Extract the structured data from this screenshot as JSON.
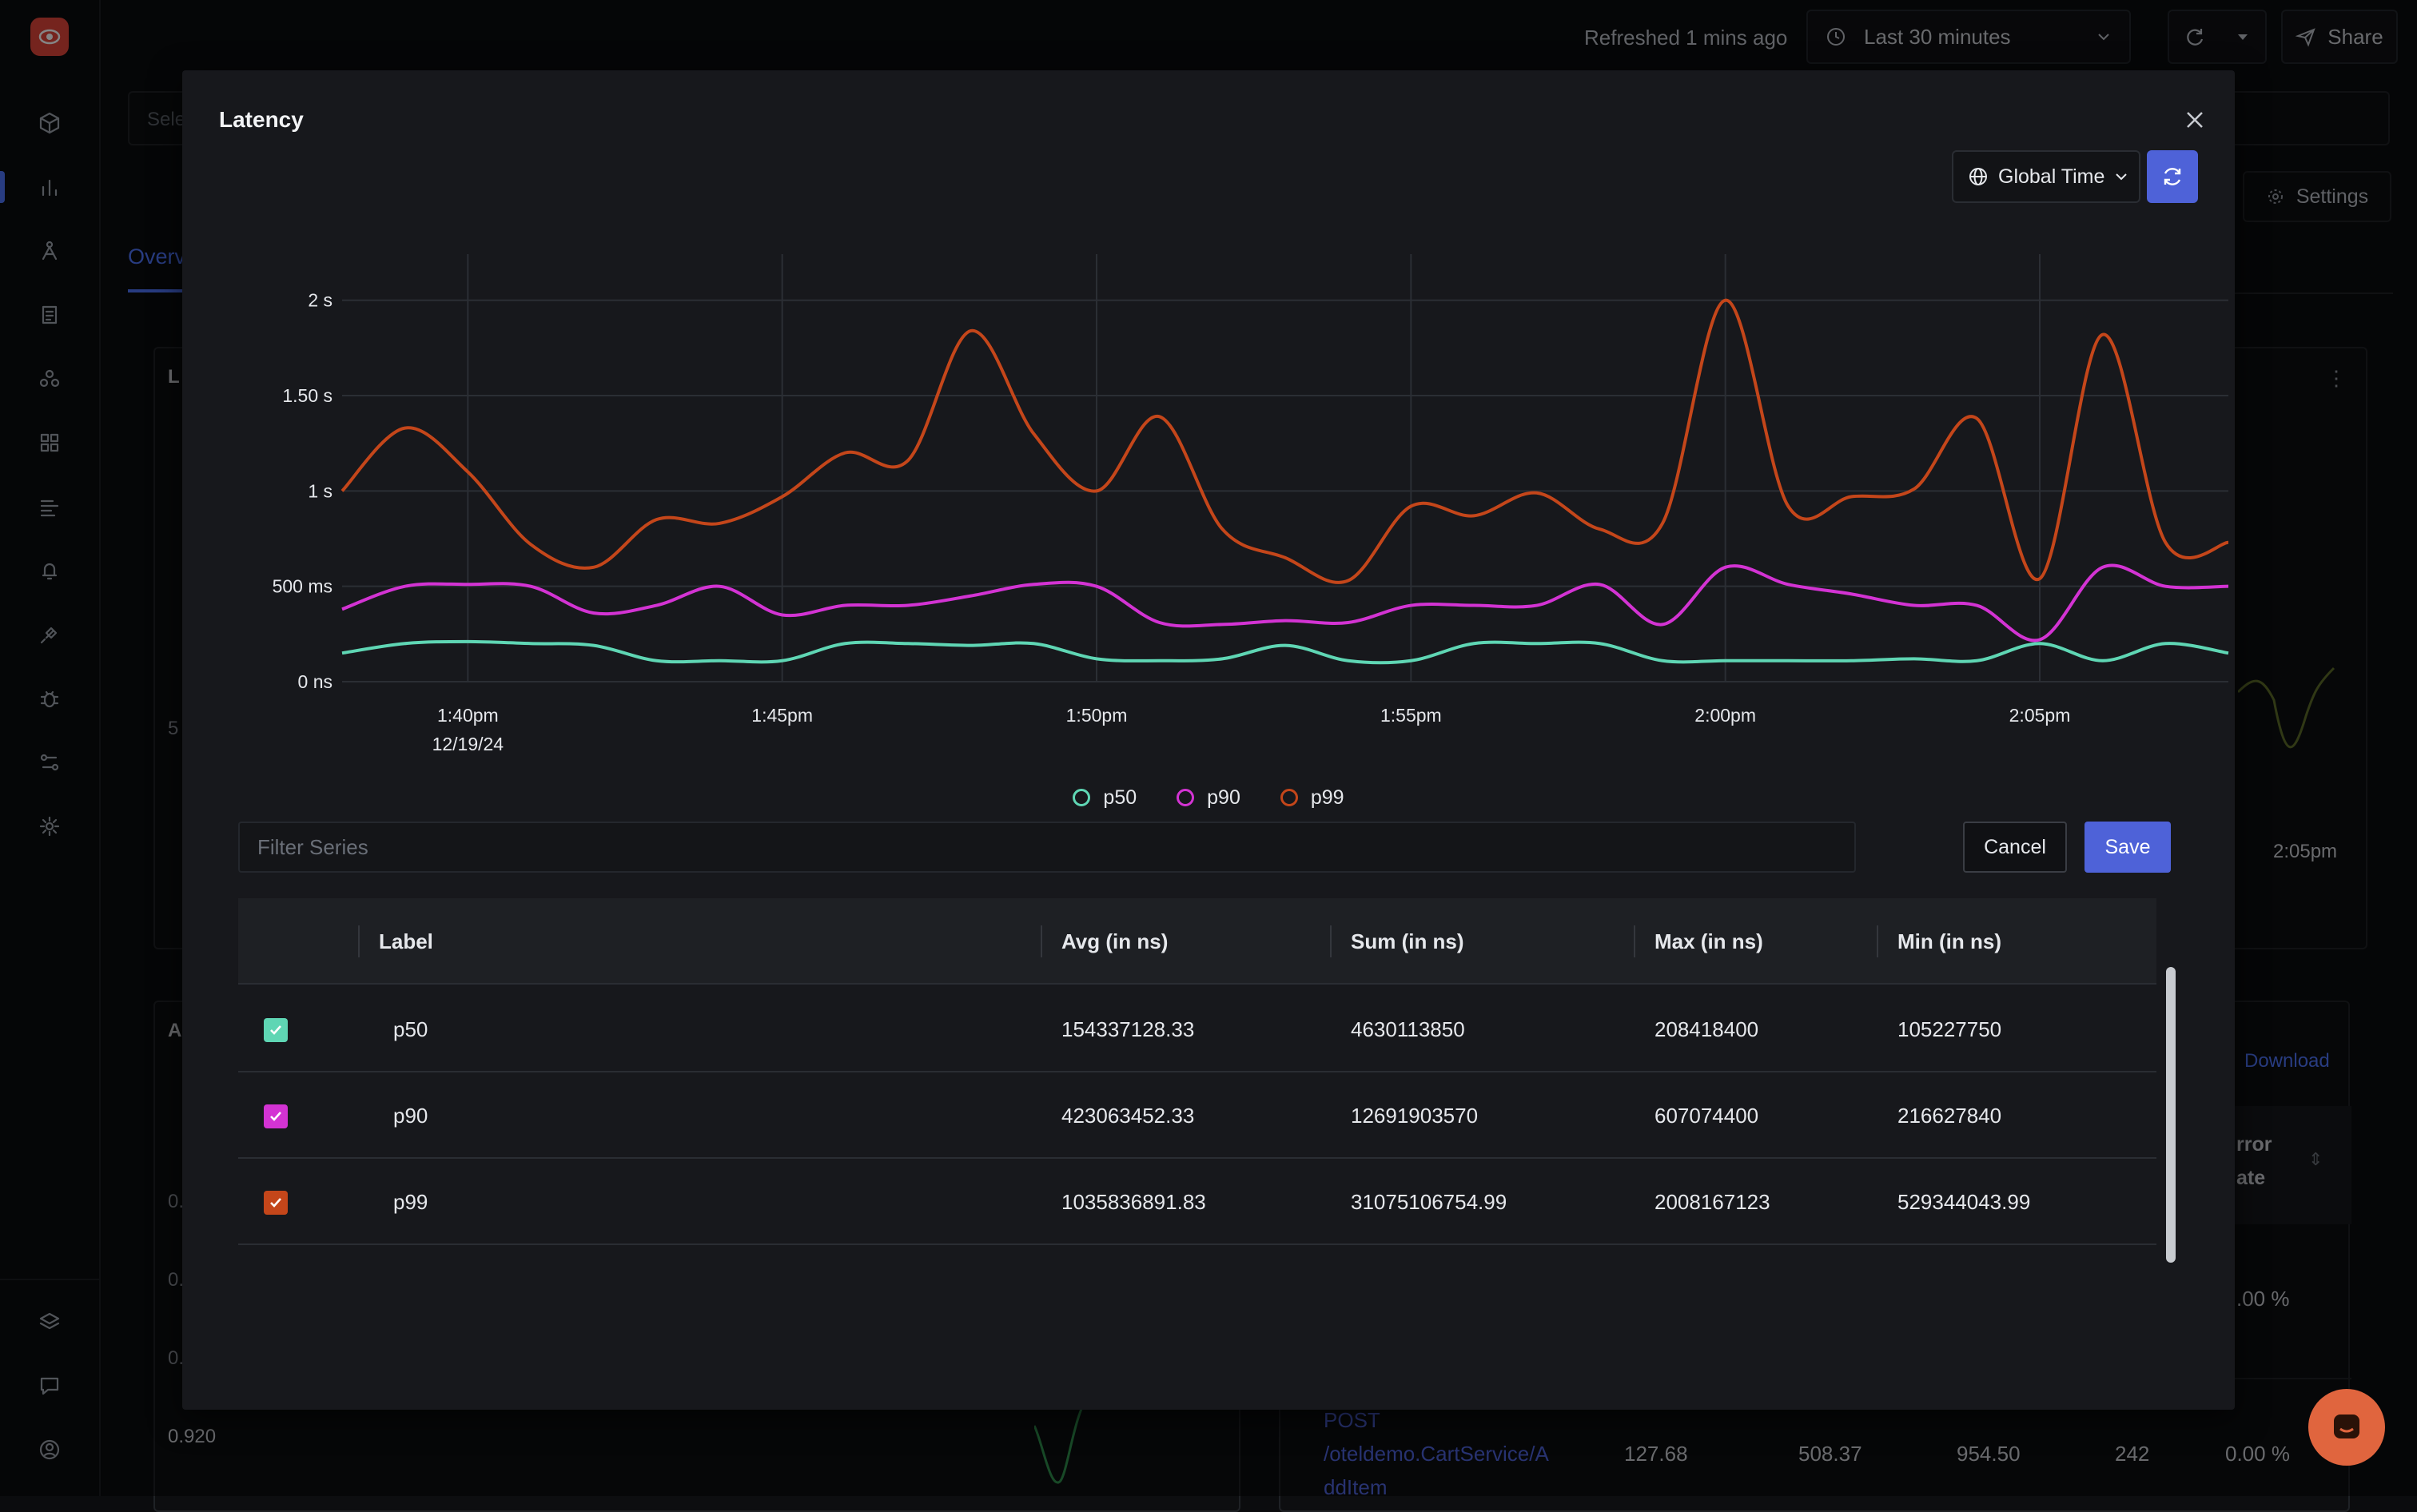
{
  "topbar": {
    "refreshed_text": "Refreshed 1 mins ago",
    "time_range": "Last 30 minutes",
    "share_label": "Share"
  },
  "background": {
    "search_placeholder_fragment": "Sele",
    "tab_fragment": "Overv",
    "settings_label": "Settings",
    "download_label": "Download",
    "error_rate_header_line1": "rror",
    "error_rate_header_line2": "ate",
    "error_rate_value": ".00 %",
    "time_label": "2:05pm",
    "left_card_label_1": "L",
    "left_card_value": "5",
    "left_card2_label": "A",
    "left_axis_1": "0.",
    "left_axis_2": "0.",
    "left_axis_3": "0.",
    "left_axis_4": "0.920",
    "endpoint_line1": "POST",
    "endpoint_line2": "/oteldemo.CartService/A",
    "endpoint_line3": "ddItem",
    "row_values": [
      "127.68",
      "508.37",
      "954.50",
      "242",
      "0.00 %"
    ]
  },
  "modal": {
    "title": "Latency",
    "time_selector": "Global Time",
    "filter_placeholder": "Filter Series",
    "cancel_label": "Cancel",
    "save_label": "Save",
    "table": {
      "headers": [
        "Label",
        "Avg (in ns)",
        "Sum (in ns)",
        "Max (in ns)",
        "Min (in ns)"
      ],
      "rows": [
        {
          "label": "p50",
          "avg": "154337128.33",
          "sum": "4630113850",
          "max": "208418400",
          "min": "105227750",
          "checked": true,
          "color": "#5fd6b4"
        },
        {
          "label": "p90",
          "avg": "423063452.33",
          "sum": "12691903570",
          "max": "607074400",
          "min": "216627840",
          "checked": true,
          "color": "#d333d3"
        },
        {
          "label": "p99",
          "avg": "1035836891.83",
          "sum": "31075106754.99",
          "max": "2008167123",
          "min": "529344043.99",
          "checked": true,
          "color": "#c4461a"
        }
      ]
    }
  },
  "chart_data": {
    "type": "line",
    "x": [
      "1:38pm",
      "1:39pm",
      "1:40pm",
      "1:41pm",
      "1:42pm",
      "1:43pm",
      "1:44pm",
      "1:45pm",
      "1:46pm",
      "1:47pm",
      "1:48pm",
      "1:49pm",
      "1:50pm",
      "1:51pm",
      "1:52pm",
      "1:53pm",
      "1:54pm",
      "1:55pm",
      "1:56pm",
      "1:57pm",
      "1:58pm",
      "1:59pm",
      "2:00pm",
      "2:01pm",
      "2:02pm",
      "2:03pm",
      "2:04pm",
      "2:05pm",
      "2:06pm",
      "2:07pm",
      "2:08pm"
    ],
    "x_ticks": [
      "1:40pm",
      "1:45pm",
      "1:50pm",
      "1:55pm",
      "2:00pm",
      "2:05pm"
    ],
    "x_date": "12/19/24",
    "y_ticks": [
      "0 ns",
      "500 ms",
      "1 s",
      "1.50 s",
      "2 s"
    ],
    "ylim_seconds": [
      0,
      2.2
    ],
    "grid": true,
    "legend_position": "bottom-center",
    "series": [
      {
        "name": "p50",
        "color": "#5fd6b4",
        "values": [
          0.15,
          0.2,
          0.21,
          0.2,
          0.19,
          0.11,
          0.11,
          0.11,
          0.2,
          0.2,
          0.19,
          0.2,
          0.12,
          0.11,
          0.12,
          0.19,
          0.11,
          0.11,
          0.2,
          0.2,
          0.2,
          0.11,
          0.11,
          0.11,
          0.11,
          0.12,
          0.11,
          0.2,
          0.11,
          0.2,
          0.15
        ]
      },
      {
        "name": "p90",
        "color": "#d333d3",
        "values": [
          0.38,
          0.5,
          0.51,
          0.5,
          0.36,
          0.4,
          0.5,
          0.35,
          0.4,
          0.4,
          0.45,
          0.51,
          0.5,
          0.31,
          0.3,
          0.32,
          0.31,
          0.4,
          0.4,
          0.4,
          0.51,
          0.3,
          0.6,
          0.51,
          0.46,
          0.4,
          0.4,
          0.22,
          0.6,
          0.5,
          0.5
        ]
      },
      {
        "name": "p99",
        "color": "#c4461a",
        "values": [
          1.0,
          1.33,
          1.1,
          0.72,
          0.6,
          0.85,
          0.83,
          0.97,
          1.2,
          1.16,
          1.84,
          1.3,
          1.0,
          1.39,
          0.8,
          0.65,
          0.53,
          0.92,
          0.87,
          0.99,
          0.8,
          0.83,
          2.0,
          0.92,
          0.97,
          1.01,
          1.38,
          0.54,
          1.82,
          0.73,
          0.73
        ]
      }
    ]
  }
}
